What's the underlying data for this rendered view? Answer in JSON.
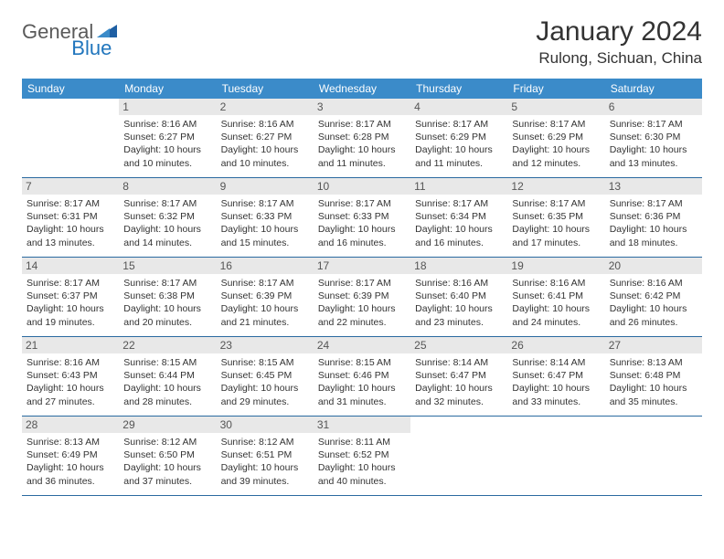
{
  "brand": {
    "part1": "General",
    "part2": "Blue"
  },
  "title": "January 2024",
  "location": "Rulong, Sichuan, China",
  "colors": {
    "header_bg": "#3b8bc9",
    "daynum_bg": "#e8e8e8",
    "rule": "#2a6aa0",
    "text": "#333333",
    "logo_gray": "#5a5a5a",
    "logo_blue": "#2176bd"
  },
  "weekdays": [
    "Sunday",
    "Monday",
    "Tuesday",
    "Wednesday",
    "Thursday",
    "Friday",
    "Saturday"
  ],
  "weeks": [
    [
      {
        "n": "",
        "sr": "",
        "ss": "",
        "dl": ""
      },
      {
        "n": "1",
        "sr": "Sunrise: 8:16 AM",
        "ss": "Sunset: 6:27 PM",
        "dl": "Daylight: 10 hours and 10 minutes."
      },
      {
        "n": "2",
        "sr": "Sunrise: 8:16 AM",
        "ss": "Sunset: 6:27 PM",
        "dl": "Daylight: 10 hours and 10 minutes."
      },
      {
        "n": "3",
        "sr": "Sunrise: 8:17 AM",
        "ss": "Sunset: 6:28 PM",
        "dl": "Daylight: 10 hours and 11 minutes."
      },
      {
        "n": "4",
        "sr": "Sunrise: 8:17 AM",
        "ss": "Sunset: 6:29 PM",
        "dl": "Daylight: 10 hours and 11 minutes."
      },
      {
        "n": "5",
        "sr": "Sunrise: 8:17 AM",
        "ss": "Sunset: 6:29 PM",
        "dl": "Daylight: 10 hours and 12 minutes."
      },
      {
        "n": "6",
        "sr": "Sunrise: 8:17 AM",
        "ss": "Sunset: 6:30 PM",
        "dl": "Daylight: 10 hours and 13 minutes."
      }
    ],
    [
      {
        "n": "7",
        "sr": "Sunrise: 8:17 AM",
        "ss": "Sunset: 6:31 PM",
        "dl": "Daylight: 10 hours and 13 minutes."
      },
      {
        "n": "8",
        "sr": "Sunrise: 8:17 AM",
        "ss": "Sunset: 6:32 PM",
        "dl": "Daylight: 10 hours and 14 minutes."
      },
      {
        "n": "9",
        "sr": "Sunrise: 8:17 AM",
        "ss": "Sunset: 6:33 PM",
        "dl": "Daylight: 10 hours and 15 minutes."
      },
      {
        "n": "10",
        "sr": "Sunrise: 8:17 AM",
        "ss": "Sunset: 6:33 PM",
        "dl": "Daylight: 10 hours and 16 minutes."
      },
      {
        "n": "11",
        "sr": "Sunrise: 8:17 AM",
        "ss": "Sunset: 6:34 PM",
        "dl": "Daylight: 10 hours and 16 minutes."
      },
      {
        "n": "12",
        "sr": "Sunrise: 8:17 AM",
        "ss": "Sunset: 6:35 PM",
        "dl": "Daylight: 10 hours and 17 minutes."
      },
      {
        "n": "13",
        "sr": "Sunrise: 8:17 AM",
        "ss": "Sunset: 6:36 PM",
        "dl": "Daylight: 10 hours and 18 minutes."
      }
    ],
    [
      {
        "n": "14",
        "sr": "Sunrise: 8:17 AM",
        "ss": "Sunset: 6:37 PM",
        "dl": "Daylight: 10 hours and 19 minutes."
      },
      {
        "n": "15",
        "sr": "Sunrise: 8:17 AM",
        "ss": "Sunset: 6:38 PM",
        "dl": "Daylight: 10 hours and 20 minutes."
      },
      {
        "n": "16",
        "sr": "Sunrise: 8:17 AM",
        "ss": "Sunset: 6:39 PM",
        "dl": "Daylight: 10 hours and 21 minutes."
      },
      {
        "n": "17",
        "sr": "Sunrise: 8:17 AM",
        "ss": "Sunset: 6:39 PM",
        "dl": "Daylight: 10 hours and 22 minutes."
      },
      {
        "n": "18",
        "sr": "Sunrise: 8:16 AM",
        "ss": "Sunset: 6:40 PM",
        "dl": "Daylight: 10 hours and 23 minutes."
      },
      {
        "n": "19",
        "sr": "Sunrise: 8:16 AM",
        "ss": "Sunset: 6:41 PM",
        "dl": "Daylight: 10 hours and 24 minutes."
      },
      {
        "n": "20",
        "sr": "Sunrise: 8:16 AM",
        "ss": "Sunset: 6:42 PM",
        "dl": "Daylight: 10 hours and 26 minutes."
      }
    ],
    [
      {
        "n": "21",
        "sr": "Sunrise: 8:16 AM",
        "ss": "Sunset: 6:43 PM",
        "dl": "Daylight: 10 hours and 27 minutes."
      },
      {
        "n": "22",
        "sr": "Sunrise: 8:15 AM",
        "ss": "Sunset: 6:44 PM",
        "dl": "Daylight: 10 hours and 28 minutes."
      },
      {
        "n": "23",
        "sr": "Sunrise: 8:15 AM",
        "ss": "Sunset: 6:45 PM",
        "dl": "Daylight: 10 hours and 29 minutes."
      },
      {
        "n": "24",
        "sr": "Sunrise: 8:15 AM",
        "ss": "Sunset: 6:46 PM",
        "dl": "Daylight: 10 hours and 31 minutes."
      },
      {
        "n": "25",
        "sr": "Sunrise: 8:14 AM",
        "ss": "Sunset: 6:47 PM",
        "dl": "Daylight: 10 hours and 32 minutes."
      },
      {
        "n": "26",
        "sr": "Sunrise: 8:14 AM",
        "ss": "Sunset: 6:47 PM",
        "dl": "Daylight: 10 hours and 33 minutes."
      },
      {
        "n": "27",
        "sr": "Sunrise: 8:13 AM",
        "ss": "Sunset: 6:48 PM",
        "dl": "Daylight: 10 hours and 35 minutes."
      }
    ],
    [
      {
        "n": "28",
        "sr": "Sunrise: 8:13 AM",
        "ss": "Sunset: 6:49 PM",
        "dl": "Daylight: 10 hours and 36 minutes."
      },
      {
        "n": "29",
        "sr": "Sunrise: 8:12 AM",
        "ss": "Sunset: 6:50 PM",
        "dl": "Daylight: 10 hours and 37 minutes."
      },
      {
        "n": "30",
        "sr": "Sunrise: 8:12 AM",
        "ss": "Sunset: 6:51 PM",
        "dl": "Daylight: 10 hours and 39 minutes."
      },
      {
        "n": "31",
        "sr": "Sunrise: 8:11 AM",
        "ss": "Sunset: 6:52 PM",
        "dl": "Daylight: 10 hours and 40 minutes."
      },
      {
        "n": "",
        "sr": "",
        "ss": "",
        "dl": ""
      },
      {
        "n": "",
        "sr": "",
        "ss": "",
        "dl": ""
      },
      {
        "n": "",
        "sr": "",
        "ss": "",
        "dl": ""
      }
    ]
  ]
}
